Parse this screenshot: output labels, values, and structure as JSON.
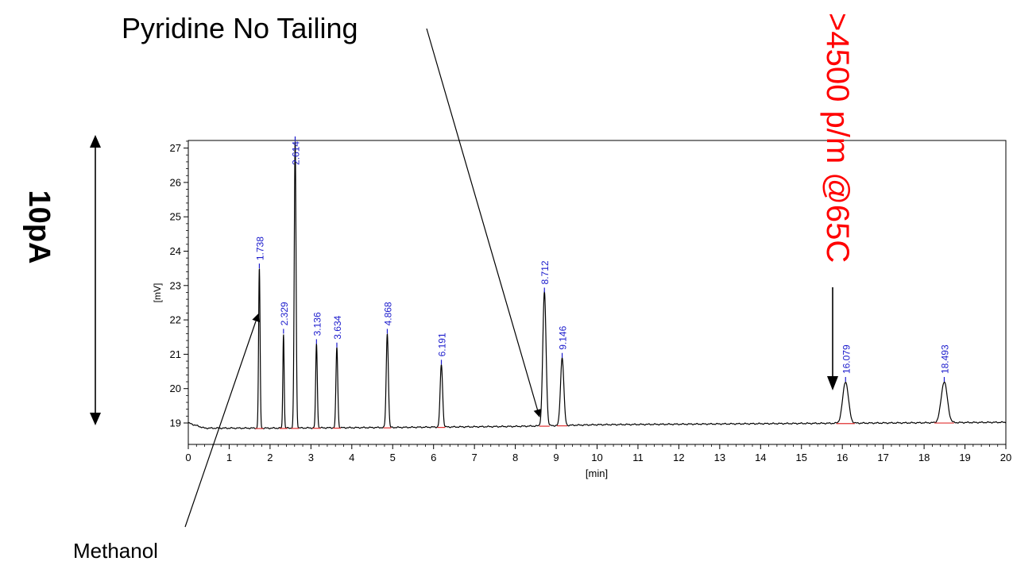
{
  "chart_data": {
    "type": "line",
    "title": "",
    "xlabel": "[min]",
    "ylabel": "[mV]",
    "xlim": [
      0,
      20
    ],
    "ylim": [
      18.5,
      27.2
    ],
    "x_ticks": [
      0,
      1,
      2,
      3,
      4,
      5,
      6,
      7,
      8,
      9,
      10,
      11,
      12,
      13,
      14,
      15,
      16,
      17,
      18,
      19,
      20
    ],
    "y_ticks": [
      19,
      20,
      21,
      22,
      23,
      24,
      25,
      26,
      27
    ],
    "baseline": [
      [
        0,
        19.0
      ],
      [
        0.4,
        18.85
      ],
      [
        2.0,
        18.85
      ],
      [
        5.0,
        18.87
      ],
      [
        8.0,
        18.9
      ],
      [
        10.0,
        18.95
      ],
      [
        14.0,
        18.98
      ],
      [
        20.0,
        19.02
      ]
    ],
    "peaks": [
      {
        "rt": 1.738,
        "label": "1.738",
        "height": 23.5,
        "width": 0.018
      },
      {
        "rt": 2.329,
        "label": "2.329",
        "height": 21.6,
        "width": 0.016
      },
      {
        "rt": 2.614,
        "label": "2.614",
        "height": 27.2,
        "width": 0.022
      },
      {
        "rt": 3.136,
        "label": "3.136",
        "height": 21.3,
        "width": 0.02
      },
      {
        "rt": 3.634,
        "label": "3.634",
        "height": 21.2,
        "width": 0.022
      },
      {
        "rt": 4.868,
        "label": "4.868",
        "height": 21.6,
        "width": 0.026
      },
      {
        "rt": 6.191,
        "label": "6.191",
        "height": 20.7,
        "width": 0.03
      },
      {
        "rt": 8.712,
        "label": "8.712",
        "height": 22.8,
        "width": 0.04
      },
      {
        "rt": 9.146,
        "label": "9.146",
        "height": 20.9,
        "width": 0.04
      },
      {
        "rt": 16.079,
        "label": "16.079",
        "height": 20.2,
        "width": 0.07
      },
      {
        "rt": 18.493,
        "label": "18.493",
        "height": 20.2,
        "width": 0.075
      }
    ],
    "colors": {
      "trace": "#000000",
      "peak_label": "#1a1acc",
      "baseline_marker": "#e03030",
      "annotation_red": "#ff0000"
    }
  },
  "annotations": {
    "scale_bar_label": "10pA",
    "pyridine_label": "Pyridine No Tailing",
    "methanol_label": "Methanol",
    "efficiency_label": ">4500 p/m @65C"
  }
}
